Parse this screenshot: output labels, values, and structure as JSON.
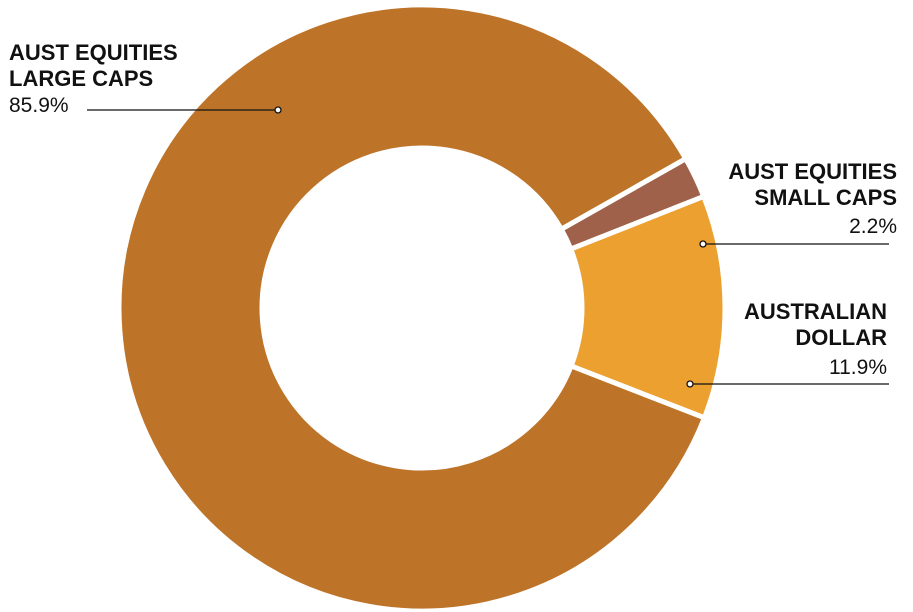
{
  "chart_data": {
    "type": "pie",
    "donut": true,
    "title": "",
    "slices": [
      {
        "name_lines": [
          "AUST EQUITIES",
          "LARGE CAPS"
        ],
        "value": 85.9,
        "value_label": "85.9%",
        "color": "#BD7328"
      },
      {
        "name_lines": [
          "AUST EQUITIES",
          "SMALL CAPS"
        ],
        "value": 2.2,
        "value_label": "2.2%",
        "color": "#A0614A"
      },
      {
        "name_lines": [
          "AUSTRALIAN",
          "DOLLAR"
        ],
        "value": 11.9,
        "value_label": "11.9%",
        "color": "#EBA030"
      }
    ]
  }
}
